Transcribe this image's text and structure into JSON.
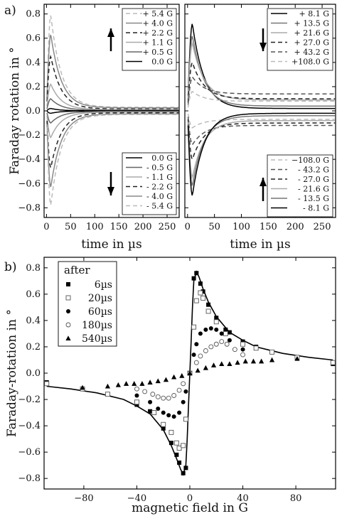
{
  "chart_data": [
    {
      "panel": "a)",
      "type": "line",
      "xlabel": "time in µs",
      "ylabel": "Faraday rotation in °",
      "xlim": [
        -5,
        275
      ],
      "ylim": [
        -0.88,
        0.88
      ],
      "xticks": [
        0,
        50,
        100,
        150,
        200,
        250
      ],
      "yticks": [
        -0.8,
        -0.6,
        -0.4,
        -0.2,
        0.0,
        0.2,
        0.4,
        0.6,
        0.8
      ],
      "legends": [
        {
          "position": "top-right",
          "arrow": "up",
          "series": [
            {
              "name": "+ 5.4 G",
              "peak": 0.79,
              "tail": 0.03,
              "color": "#bbbbbb",
              "dash": "6,4"
            },
            {
              "name": "+ 4.0 G",
              "peak": 0.63,
              "tail": 0.025,
              "color": "#888888",
              "dash": ""
            },
            {
              "name": "+ 2.2 G",
              "peak": 0.45,
              "tail": 0.015,
              "color": "#222222",
              "dash": "6,4"
            },
            {
              "name": "+ 1.1 G",
              "peak": 0.22,
              "tail": 0.01,
              "color": "#aaaaaa",
              "dash": ""
            },
            {
              "name": "+ 0.5 G",
              "peak": 0.1,
              "tail": 0.005,
              "color": "#666666",
              "dash": ""
            },
            {
              "name": "0.0 G",
              "peak": 0.02,
              "tail": 0.0,
              "color": "#000000",
              "dash": ""
            }
          ]
        },
        {
          "position": "bottom-right",
          "arrow": "down",
          "series": [
            {
              "name": "0.0 G",
              "peak": -0.02,
              "tail": 0.0,
              "color": "#000000",
              "dash": ""
            },
            {
              "name": "- 0.5 G",
              "peak": -0.1,
              "tail": -0.005,
              "color": "#666666",
              "dash": ""
            },
            {
              "name": "- 1.1 G",
              "peak": -0.22,
              "tail": -0.01,
              "color": "#aaaaaa",
              "dash": ""
            },
            {
              "name": "- 2.2 G",
              "peak": -0.47,
              "tail": -0.015,
              "color": "#222222",
              "dash": "6,4"
            },
            {
              "name": "- 4.0 G",
              "peak": -0.63,
              "tail": -0.025,
              "color": "#888888",
              "dash": ""
            },
            {
              "name": "- 5.4 G",
              "peak": -0.78,
              "tail": -0.03,
              "color": "#bbbbbb",
              "dash": "6,4"
            }
          ]
        }
      ]
    },
    {
      "type": "line",
      "xlabel": "time in µs",
      "xlim": [
        -5,
        275
      ],
      "ylim": [
        -0.88,
        0.88
      ],
      "xticks": [
        0,
        50,
        100,
        150,
        200,
        250
      ],
      "legends": [
        {
          "position": "top-right",
          "arrow": "down",
          "series": [
            {
              "name": "+    8.1 G",
              "peak": 0.72,
              "tail": 0.02,
              "color": "#000000",
              "dash": ""
            },
            {
              "name": "+  13.5 G",
              "peak": 0.62,
              "tail": 0.04,
              "color": "#777777",
              "dash": ""
            },
            {
              "name": "+  21.6 G",
              "peak": 0.56,
              "tail": 0.09,
              "color": "#aaaaaa",
              "dash": ""
            },
            {
              "name": "+  27.0 G",
              "peak": 0.4,
              "tail": 0.1,
              "color": "#222222",
              "dash": "6,4"
            },
            {
              "name": "+  43.2 G",
              "peak": 0.28,
              "tail": 0.14,
              "color": "#555555",
              "dash": "6,4"
            },
            {
              "name": "+108.0 G",
              "peak": 0.16,
              "tail": 0.08,
              "color": "#bbbbbb",
              "dash": "6,4"
            }
          ]
        },
        {
          "position": "bottom-right",
          "arrow": "up",
          "series": [
            {
              "name": "−108.0 G",
              "peak": -0.14,
              "tail": -0.07,
              "color": "#bbbbbb",
              "dash": "6,4"
            },
            {
              "name": "-   43.2 G",
              "peak": -0.28,
              "tail": -0.12,
              "color": "#555555",
              "dash": "6,4"
            },
            {
              "name": "-   27.0 G",
              "peak": -0.4,
              "tail": -0.1,
              "color": "#222222",
              "dash": "6,4"
            },
            {
              "name": "-   21.6 G",
              "peak": -0.55,
              "tail": -0.08,
              "color": "#aaaaaa",
              "dash": ""
            },
            {
              "name": "-   13.5 G",
              "peak": -0.62,
              "tail": -0.04,
              "color": "#777777",
              "dash": ""
            },
            {
              "name": "-     8.1 G",
              "peak": -0.7,
              "tail": -0.02,
              "color": "#000000",
              "dash": ""
            }
          ]
        }
      ]
    },
    {
      "panel": "b)",
      "type": "scatter",
      "xlabel": "magnetic field in G",
      "ylabel": "Faraday-rotation in °",
      "xlim": [
        -110,
        110
      ],
      "ylim": [
        -0.88,
        0.88
      ],
      "xticks": [
        -80,
        -40,
        0,
        40,
        80
      ],
      "yticks": [
        -0.8,
        -0.6,
        -0.4,
        -0.2,
        0.0,
        0.2,
        0.4,
        0.6,
        0.8
      ],
      "legend_title": "after",
      "legend_position": "top-left",
      "fit_curve": {
        "x": [
          -108,
          -90,
          -70,
          -50,
          -40,
          -30,
          -20,
          -14,
          -10,
          -7,
          -5,
          -3,
          -2,
          -1,
          0,
          1,
          2,
          3,
          5,
          7,
          10,
          14,
          20,
          30,
          40,
          50,
          70,
          90,
          108
        ],
        "y": [
          -0.1,
          -0.12,
          -0.15,
          -0.2,
          -0.25,
          -0.31,
          -0.43,
          -0.55,
          -0.65,
          -0.73,
          -0.77,
          -0.7,
          -0.5,
          -0.25,
          0.0,
          0.25,
          0.5,
          0.7,
          0.77,
          0.73,
          0.64,
          0.54,
          0.43,
          0.31,
          0.25,
          0.2,
          0.15,
          0.12,
          0.1
        ]
      },
      "series": [
        {
          "name": "6µs",
          "marker": "square-filled",
          "x": [
            -108,
            -81,
            -62,
            -40,
            -30,
            -20,
            -14,
            -10,
            -8,
            -5,
            -3,
            0,
            3,
            5,
            8,
            10,
            14,
            20,
            27,
            30,
            40,
            50,
            62,
            81,
            108
          ],
          "y": [
            -0.07,
            -0.12,
            -0.16,
            -0.24,
            -0.29,
            -0.42,
            -0.53,
            -0.62,
            -0.68,
            -0.76,
            -0.72,
            0.0,
            0.72,
            0.76,
            0.68,
            0.62,
            0.52,
            0.42,
            0.33,
            0.31,
            0.24,
            0.2,
            0.16,
            0.12,
            0.07
          ]
        },
        {
          "name": "20µs",
          "marker": "square-open",
          "x": [
            -108,
            -81,
            -62,
            -40,
            -27,
            -20,
            -14,
            -10,
            -8,
            -5,
            -3,
            0,
            3,
            5,
            8,
            10,
            14,
            20,
            27,
            40,
            50,
            62,
            81,
            108
          ],
          "y": [
            -0.08,
            -0.12,
            -0.16,
            -0.22,
            -0.3,
            -0.39,
            -0.45,
            -0.53,
            -0.57,
            -0.55,
            -0.35,
            0.0,
            0.35,
            0.55,
            0.61,
            0.57,
            0.47,
            0.39,
            0.3,
            0.22,
            0.19,
            0.16,
            0.12,
            0.08
          ]
        },
        {
          "name": "60µs",
          "marker": "circle-filled",
          "x": [
            -40,
            -30,
            -24,
            -20,
            -16,
            -12,
            -8,
            -5,
            -3,
            0,
            3,
            5,
            8,
            12,
            16,
            20,
            24,
            30,
            40
          ],
          "y": [
            -0.17,
            -0.22,
            -0.27,
            -0.3,
            -0.32,
            -0.33,
            -0.3,
            -0.22,
            -0.14,
            0.0,
            0.14,
            0.22,
            0.3,
            0.33,
            0.34,
            0.33,
            0.3,
            0.25,
            0.18
          ]
        },
        {
          "name": "180µs",
          "marker": "circle-open",
          "x": [
            -40,
            -34,
            -28,
            -24,
            -20,
            -16,
            -12,
            -8,
            -5,
            0,
            5,
            8,
            12,
            16,
            20,
            24,
            28,
            34,
            40
          ],
          "y": [
            -0.12,
            -0.14,
            -0.16,
            -0.18,
            -0.19,
            -0.19,
            -0.17,
            -0.13,
            -0.08,
            0.0,
            0.08,
            0.13,
            0.17,
            0.2,
            0.22,
            0.24,
            0.22,
            0.18,
            0.14
          ]
        },
        {
          "name": "540µs",
          "marker": "triangle-filled",
          "x": [
            -81,
            -62,
            -54,
            -48,
            -42,
            -36,
            -30,
            -24,
            -18,
            -12,
            -6,
            0,
            6,
            12,
            18,
            24,
            30,
            36,
            42,
            48,
            54,
            62,
            81
          ],
          "y": [
            -0.11,
            -0.1,
            -0.09,
            -0.08,
            -0.08,
            -0.08,
            -0.07,
            -0.06,
            -0.05,
            -0.03,
            -0.02,
            0.0,
            0.02,
            0.04,
            0.06,
            0.07,
            0.07,
            0.08,
            0.09,
            0.09,
            0.09,
            0.1,
            0.11
          ]
        }
      ]
    }
  ]
}
